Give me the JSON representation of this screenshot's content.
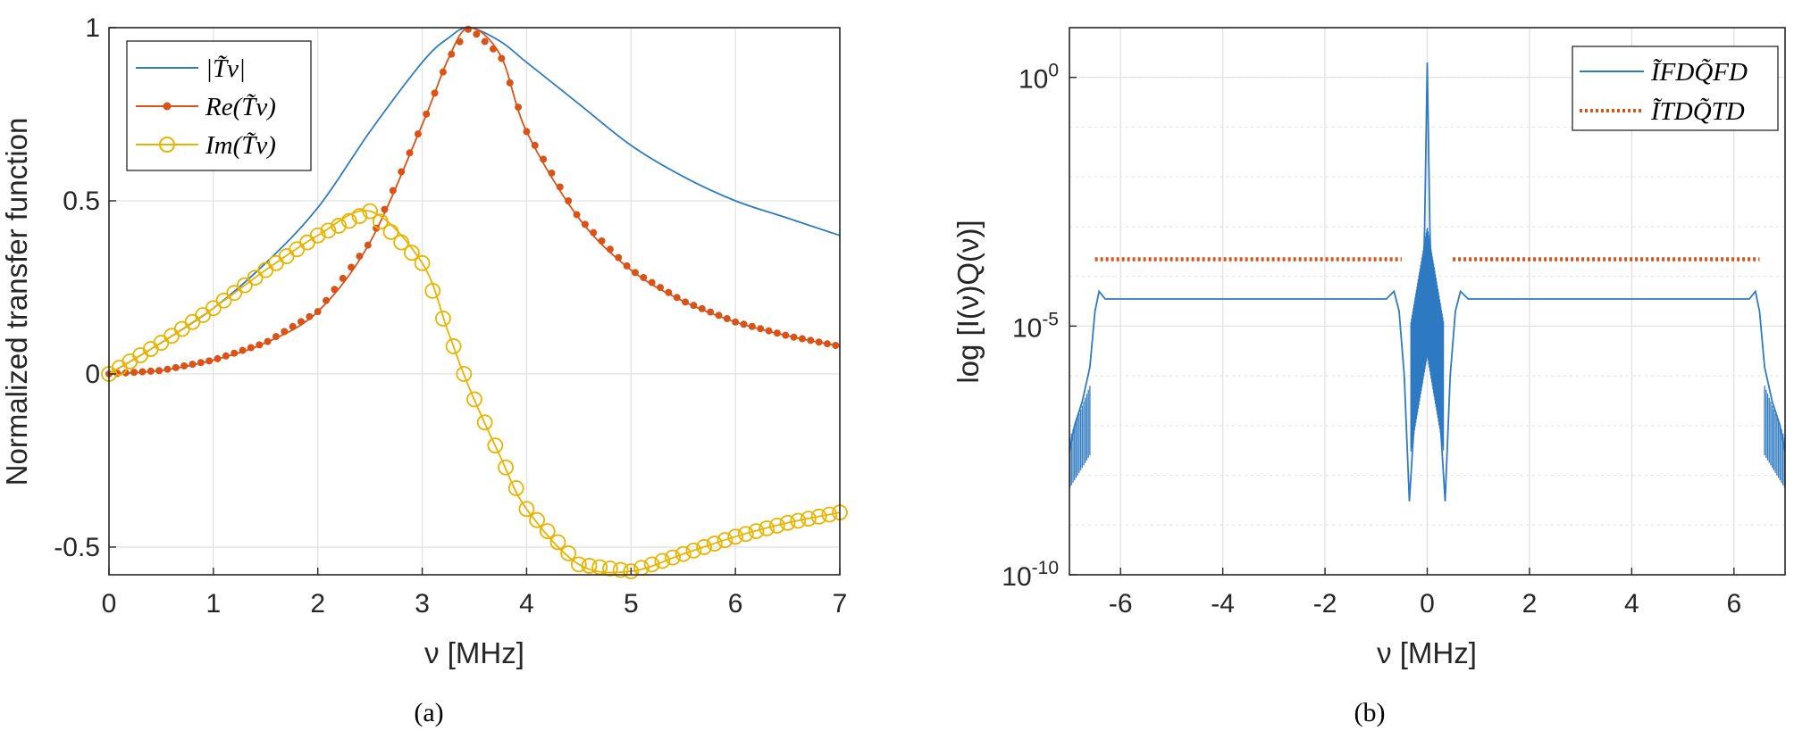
{
  "colors": {
    "abs": "#2f7bc2",
    "re": "#d95319",
    "im": "#e8b400",
    "fd": "#2f7bc2",
    "td": "#d95319"
  },
  "chart_data": [
    {
      "type": "line",
      "panel_label": "(a)",
      "xlabel": "ν [MHz]",
      "ylabel": "Normalized transfer function",
      "xlim": [
        0,
        7
      ],
      "ylim": [
        -0.58,
        1.0
      ],
      "x_ticks": [
        0,
        1,
        2,
        3,
        4,
        5,
        6,
        7
      ],
      "x_tick_labels": [
        "0",
        "1",
        "2",
        "3",
        "4",
        "5",
        "6",
        "7"
      ],
      "y_ticks": [
        -0.5,
        0,
        0.5,
        1
      ],
      "y_tick_labels": [
        "-0.5",
        "0",
        "0.5",
        "1"
      ],
      "grid": true,
      "legend_position": "top-left",
      "x": [
        0,
        0.5,
        1,
        1.5,
        2,
        2.5,
        3,
        3.25,
        3.45,
        3.75,
        4,
        4.5,
        5,
        5.5,
        6,
        6.5,
        7
      ],
      "series": [
        {
          "name": "|T̃ν|",
          "marker": "none",
          "values": [
            0.0,
            0.09,
            0.19,
            0.32,
            0.48,
            0.7,
            0.9,
            0.97,
            1.0,
            0.96,
            0.9,
            0.78,
            0.66,
            0.57,
            0.5,
            0.45,
            0.4
          ]
        },
        {
          "name": "Re(T̃ν)",
          "marker": "dot",
          "values": [
            0.0,
            0.01,
            0.04,
            0.09,
            0.18,
            0.38,
            0.72,
            0.91,
            1.0,
            0.92,
            0.7,
            0.45,
            0.3,
            0.21,
            0.15,
            0.11,
            0.08
          ]
        },
        {
          "name": "Im(T̃ν)",
          "marker": "circle",
          "values": [
            0.0,
            0.09,
            0.19,
            0.3,
            0.4,
            0.47,
            0.32,
            0.12,
            -0.04,
            -0.24,
            -0.39,
            -0.55,
            -0.57,
            -0.52,
            -0.47,
            -0.43,
            -0.4
          ]
        }
      ]
    },
    {
      "type": "line",
      "panel_label": "(b)",
      "xlabel": "ν [MHz]",
      "ylabel": "log [I(ν)Q(ν)]",
      "xlim": [
        -7,
        7
      ],
      "y_scale": "log",
      "ylim": [
        1e-10,
        10.0
      ],
      "x_ticks": [
        -6,
        -4,
        -2,
        0,
        2,
        4,
        6
      ],
      "x_tick_labels": [
        "-6",
        "-4",
        "-2",
        "0",
        "2",
        "4",
        "6"
      ],
      "y_ticks": [
        1e-10,
        1e-05,
        1.0
      ],
      "y_tick_bases": [
        "10",
        "10",
        "10"
      ],
      "y_tick_exponents": [
        "-10",
        "-5",
        "0"
      ],
      "grid": true,
      "legend_position": "top-right",
      "series": [
        {
          "name": "ĨFDQ̃FD",
          "style": "solid",
          "points": [
            [
              -7,
              3e-08
            ],
            [
              -6.9,
              1e-07
            ],
            [
              -6.75,
              3e-07
            ],
            [
              -6.6,
              1.5e-06
            ],
            [
              -6.5,
              2e-05
            ],
            [
              -6.42,
              5e-05
            ],
            [
              -6.3,
              3.5e-05
            ],
            [
              -4,
              3.5e-05
            ],
            [
              -2,
              3.5e-05
            ],
            [
              -0.8,
              3.5e-05
            ],
            [
              -0.65,
              5e-05
            ],
            [
              -0.55,
              2e-05
            ],
            [
              -0.45,
              1e-06
            ],
            [
              -0.35,
              3e-09
            ],
            [
              -0.2,
              1e-06
            ],
            [
              -0.1,
              1e-05
            ],
            [
              -0.05,
              0.001
            ],
            [
              0,
              2
            ],
            [
              0.05,
              0.001
            ],
            [
              0.1,
              1e-05
            ],
            [
              0.2,
              1e-06
            ],
            [
              0.35,
              3e-09
            ],
            [
              0.45,
              1e-06
            ],
            [
              0.55,
              2e-05
            ],
            [
              0.65,
              5e-05
            ],
            [
              0.8,
              3.5e-05
            ],
            [
              2,
              3.5e-05
            ],
            [
              4,
              3.5e-05
            ],
            [
              6.3,
              3.5e-05
            ],
            [
              6.42,
              5e-05
            ],
            [
              6.5,
              2e-05
            ],
            [
              6.6,
              1.5e-06
            ],
            [
              6.75,
              3e-07
            ],
            [
              6.9,
              1e-07
            ],
            [
              7,
              3e-08
            ]
          ]
        },
        {
          "name": "ĨTDQ̃TD",
          "style": "dotted",
          "segments": [
            [
              [
                -6.5,
                0.00022
              ],
              [
                -0.5,
                0.00022
              ]
            ],
            [
              [
                0.5,
                0.00022
              ],
              [
                6.5,
                0.00022
              ]
            ]
          ]
        }
      ]
    }
  ]
}
